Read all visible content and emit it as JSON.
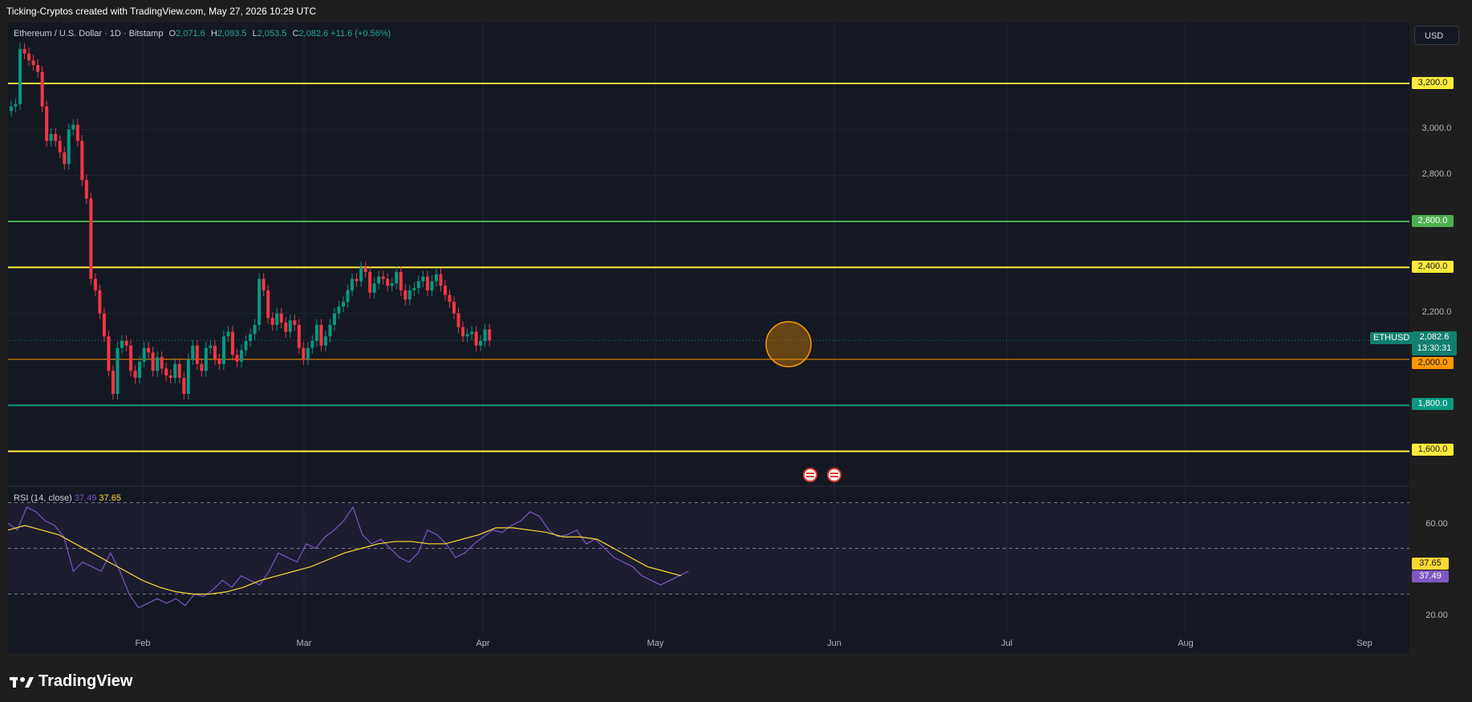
{
  "header": {
    "attribution": "Ticking-Cryptos created with TradingView.com, May 27, 2026 10:29 UTC"
  },
  "symbol": {
    "title": "Ethereum / U.S. Dollar · 1D · Bitstamp",
    "open_key": "O",
    "open": "2,071.6",
    "high_key": "H",
    "high": "2,093.5",
    "low_key": "L",
    "low": "2,053.5",
    "close_key": "C",
    "close": "2,082.6",
    "change": "+11.6 (+0.56%)"
  },
  "currency_button": "USD",
  "price_axis": {
    "labels": [
      "3,000.0",
      "2,800.0",
      "2,200.0"
    ],
    "current_ticker": "ETHUSD",
    "current_price": "2,082.6",
    "countdown": "13:30:31"
  },
  "levels": [
    {
      "label": "3,200.0",
      "color": "#ffeb3b",
      "text_color": "#131722"
    },
    {
      "label": "2,600.0",
      "color": "#4caf50",
      "text_color": "#ffffff"
    },
    {
      "label": "2,400.0",
      "color": "#ffeb3b",
      "text_color": "#131722"
    },
    {
      "label": "2,000.0",
      "color": "#ff9800",
      "text_color": "#131722"
    },
    {
      "label": "1,800.0",
      "color": "#089981",
      "text_color": "#ffffff"
    },
    {
      "label": "1,600.0",
      "color": "#ffeb3b",
      "text_color": "#131722"
    }
  ],
  "rsi": {
    "title": "RSI (14, close)",
    "rsi_value": "37.49",
    "ma_value": "37.65",
    "axis_labels": [
      "60.00",
      "20.00"
    ],
    "rsi_color": "#7e57c2",
    "ma_color": "#fdd835"
  },
  "time_axis": [
    "Feb",
    "Mar",
    "Apr",
    "May",
    "Jun",
    "Jul",
    "Aug",
    "Sep"
  ],
  "colors": {
    "up": "#089981",
    "down": "#f23645",
    "background": "#141823"
  },
  "footer": {
    "brand": "TradingView"
  }
}
